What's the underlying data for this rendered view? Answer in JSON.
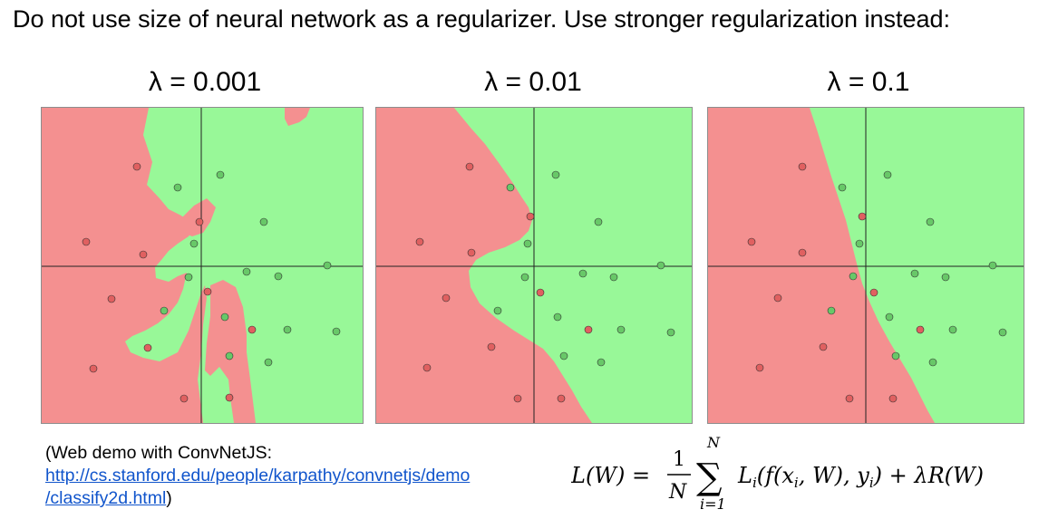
{
  "slide": {
    "heading": "Do not use size of neural network as a regularizer. Use stronger regularization instead:"
  },
  "colors": {
    "red_region": "#f49090",
    "green_region": "#98f898",
    "red_point": "#e06060",
    "green_point": "#68c868",
    "axis_line": "#222222",
    "link": "#1155cc"
  },
  "panels": [
    {
      "title": "λ = 0.001"
    },
    {
      "title": "λ = 0.01"
    },
    {
      "title": "λ = 0.1"
    }
  ],
  "demo": {
    "line1": "(Web demo with ConvNetJS:",
    "link_part1": "http://cs.stanford.edu/people/karpathy/convnetjs/demo",
    "link_part2": "/classify2d.html",
    "closing": ")"
  },
  "formula": {
    "lhs": "L(W) =",
    "frac_num": "1",
    "frac_den": "N",
    "sum_top": "N",
    "sum_sym": "∑",
    "sum_bottom": "i=1",
    "body": "L",
    "body_sub": "i",
    "body_rest": "(f(x",
    "x_sub": "i",
    "body_rest2": ", W), y",
    "y_sub": "i",
    "body_rest3": ") + λR(W)"
  }
}
